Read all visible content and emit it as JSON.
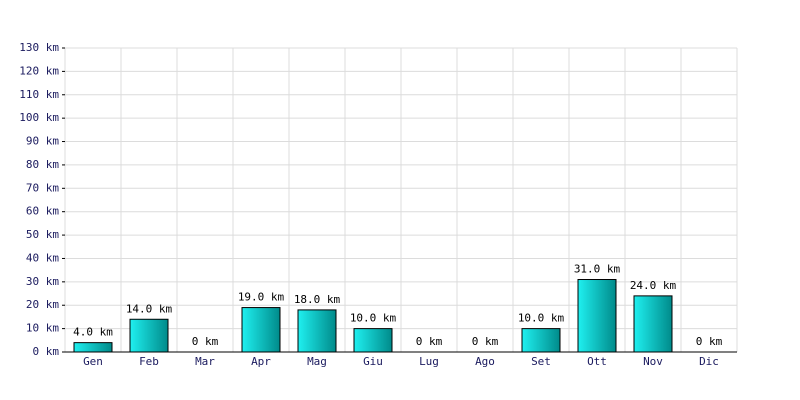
{
  "chart_data": {
    "type": "bar",
    "categories": [
      "Gen",
      "Feb",
      "Mar",
      "Apr",
      "Mag",
      "Giu",
      "Lug",
      "Ago",
      "Set",
      "Ott",
      "Nov",
      "Dic"
    ],
    "values": [
      4,
      14,
      0,
      19,
      18,
      10,
      0,
      0,
      10,
      31,
      24,
      0
    ],
    "value_labels": [
      "4.0 km",
      "14.0 km",
      "0 km",
      "19.0 km",
      "18.0 km",
      "10.0 km",
      "0 km",
      "0 km",
      "10.0 km",
      "31.0 km",
      "24.0 km",
      "0 km"
    ],
    "color": "#00c8c8",
    "ylim": [
      0,
      130
    ],
    "yticks": [
      {
        "value": 0,
        "label": "0 km"
      },
      {
        "value": 10,
        "label": "10 km"
      },
      {
        "value": 20,
        "label": "20 km"
      },
      {
        "value": 30,
        "label": "30 km"
      },
      {
        "value": 40,
        "label": "40 km"
      },
      {
        "value": 50,
        "label": "50 km"
      },
      {
        "value": 60,
        "label": "60 km"
      },
      {
        "value": 70,
        "label": "70 km"
      },
      {
        "value": 80,
        "label": "80 km"
      },
      {
        "value": 90,
        "label": "90 km"
      },
      {
        "value": 100,
        "label": "100 km"
      },
      {
        "value": 110,
        "label": "110 km"
      },
      {
        "value": 120,
        "label": "120 km"
      },
      {
        "value": 130,
        "label": "130 km"
      }
    ],
    "grid": true
  }
}
